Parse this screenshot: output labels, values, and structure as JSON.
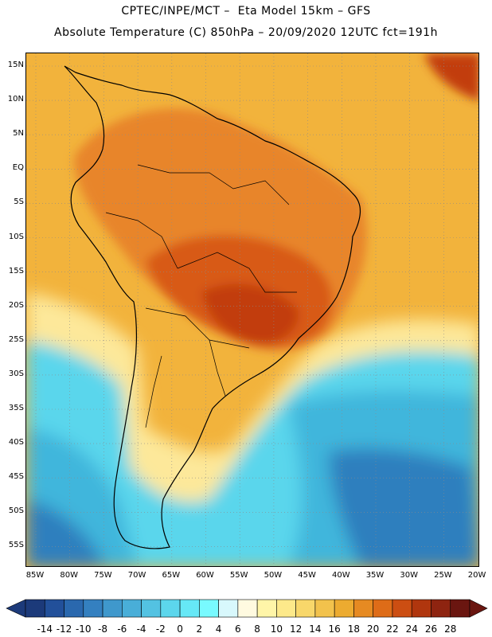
{
  "header": {
    "line1": "CPTEC/INPE/MCT –  Eta Model 15km – GFS",
    "line2": "Absolute Temperature (C) 850hPa – 20/09/2020 12UTC fct=191h"
  },
  "map": {
    "lat_labels": [
      "15N",
      "10N",
      "5N",
      "EQ",
      "5S",
      "10S",
      "15S",
      "20S",
      "25S",
      "30S",
      "35S",
      "40S",
      "45S",
      "50S",
      "55S"
    ],
    "lon_labels": [
      "85W",
      "80W",
      "75W",
      "70W",
      "65W",
      "60W",
      "55W",
      "50W",
      "45W",
      "40W",
      "35W",
      "30W",
      "25W",
      "20W"
    ],
    "colors": {
      "ocean_warm": "#f2b33c",
      "land_hot": "#e8852a",
      "core_hot": "#d85a14",
      "core_hottest": "#c23c10",
      "cool_pale": "#fde89a",
      "cold_light": "#5ad6ec",
      "cold_mid": "#3fb6dc",
      "cold_deep": "#2f7fbe"
    }
  },
  "colorbar": {
    "labels": [
      "-14",
      "-12",
      "-10",
      "-8",
      "-6",
      "-4",
      "-2",
      "0",
      "2",
      "4",
      "6",
      "8",
      "10",
      "12",
      "14",
      "16",
      "18",
      "20",
      "22",
      "24",
      "26",
      "28"
    ],
    "colors": [
      "#1c3a7a",
      "#22509a",
      "#2a68ae",
      "#3480c0",
      "#3f98cc",
      "#49aed8",
      "#53c2e2",
      "#5cd6ec",
      "#66e8f6",
      "#78faff",
      "#d8f8fc",
      "#fffae0",
      "#fff5a8",
      "#fde98a",
      "#f8d76a",
      "#f2c24c",
      "#ecab30",
      "#e68a22",
      "#de6c18",
      "#cc4e12",
      "#b0360e",
      "#8e2410",
      "#6a1610"
    ]
  }
}
